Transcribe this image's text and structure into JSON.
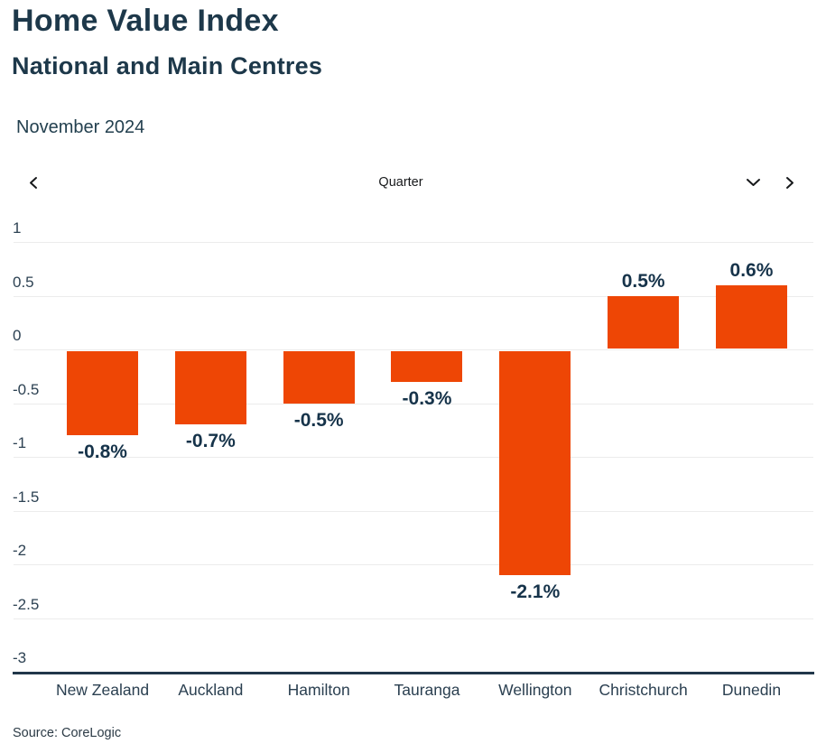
{
  "header": {
    "title": "Home Value Index",
    "subtitle": "National and Main Centres",
    "period": "November 2024"
  },
  "controls": {
    "metric_label": "Quarter",
    "prev_icon": "chevron-left",
    "next_icon": "chevron-right",
    "dropdown_icon": "chevron-down"
  },
  "chart_data": {
    "type": "bar",
    "title": "Home Value Index",
    "subtitle": "National and Main Centres",
    "period": "November 2024",
    "categories": [
      "New Zealand",
      "Auckland",
      "Hamilton",
      "Tauranga",
      "Wellington",
      "Christchurch",
      "Dunedin"
    ],
    "values": [
      -0.8,
      -0.7,
      -0.5,
      -0.3,
      -2.1,
      0.5,
      0.6
    ],
    "data_labels": [
      "-0.8%",
      "-0.7%",
      "-0.5%",
      "-0.3%",
      "-2.1%",
      "0.5%",
      "0.6%"
    ],
    "unit": "%",
    "xlabel": "",
    "ylabel": "",
    "ylim": [
      -3,
      1
    ],
    "ytick_step": 0.5,
    "yticks": [
      "1",
      "0.5",
      "0",
      "-0.5",
      "-1",
      "-1.5",
      "-2",
      "-2.5",
      "-3"
    ],
    "grid": true,
    "legend": "none",
    "bar_color": "#ee4605",
    "text_color": "#1d384a",
    "grid_color": "#ececec",
    "axis_color": "#21374a"
  },
  "footer": {
    "source": "Source: CoreLogic"
  }
}
